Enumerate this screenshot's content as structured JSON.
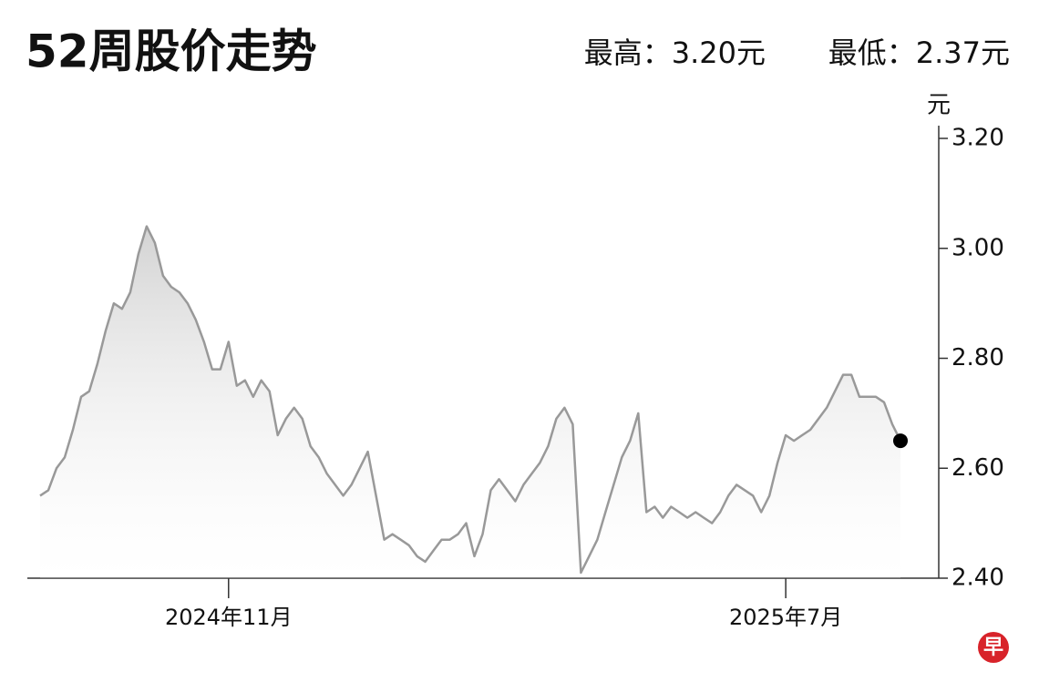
{
  "chart_data": {
    "type": "line",
    "title": "52周股价走势",
    "subtitle": [
      "最高：3.20元",
      "最低：2.37元"
    ],
    "y_axis_label": "元",
    "logo": "早",
    "categories": [
      null,
      null,
      null,
      null,
      null,
      null,
      null,
      null,
      null,
      null,
      null,
      null,
      null,
      null,
      null,
      null,
      null,
      null,
      null,
      null,
      null,
      null,
      null,
      "2024年11月",
      null,
      null,
      null,
      null,
      null,
      null,
      null,
      null,
      null,
      null,
      null,
      null,
      null,
      null,
      null,
      null,
      null,
      null,
      null,
      null,
      null,
      null,
      null,
      null,
      null,
      null,
      null,
      null,
      null,
      null,
      null,
      null,
      null,
      null,
      null,
      null,
      null,
      null,
      null,
      null,
      null,
      null,
      null,
      null,
      null,
      null,
      null,
      null,
      null,
      null,
      null,
      null,
      null,
      null,
      null,
      null,
      null,
      null,
      null,
      null,
      null,
      null,
      null,
      null,
      null,
      null,
      null,
      "2025年7月",
      null,
      null,
      null,
      null,
      null,
      null,
      null,
      null,
      null,
      null,
      null,
      null,
      null,
      null
    ],
    "series": [
      {
        "color": "#999999",
        "end_marker_color": "#000000",
        "values": [
          2.55,
          2.56,
          2.6,
          2.62,
          2.67,
          2.73,
          2.74,
          2.79,
          2.85,
          2.9,
          2.89,
          2.92,
          2.99,
          3.04,
          3.01,
          2.95,
          2.93,
          2.92,
          2.9,
          2.87,
          2.83,
          2.78,
          2.78,
          2.83,
          2.75,
          2.76,
          2.73,
          2.76,
          2.74,
          2.66,
          2.69,
          2.71,
          2.69,
          2.64,
          2.62,
          2.59,
          2.57,
          2.55,
          2.57,
          2.6,
          2.63,
          2.55,
          2.47,
          2.48,
          2.47,
          2.46,
          2.44,
          2.43,
          2.45,
          2.47,
          2.47,
          2.48,
          2.5,
          2.44,
          2.48,
          2.56,
          2.58,
          2.56,
          2.54,
          2.57,
          2.59,
          2.61,
          2.64,
          2.69,
          2.71,
          2.68,
          2.41,
          2.44,
          2.47,
          2.52,
          2.57,
          2.62,
          2.65,
          2.7,
          2.52,
          2.53,
          2.51,
          2.53,
          2.52,
          2.51,
          2.52,
          2.51,
          2.5,
          2.52,
          2.55,
          2.57,
          2.56,
          2.55,
          2.52,
          2.55,
          2.61,
          2.66,
          2.65,
          2.66,
          2.67,
          2.69,
          2.71,
          2.74,
          2.77,
          2.77,
          2.73,
          2.73,
          2.73,
          2.72,
          2.68,
          2.65
        ]
      }
    ],
    "ylim": [
      2.4,
      3.2
    ],
    "yticks": [
      {
        "value": 3.2,
        "label": "3.20"
      },
      {
        "value": 3,
        "label": "3.00"
      },
      {
        "value": 2.8,
        "label": "2.80"
      },
      {
        "value": 2.6,
        "label": "2.60"
      },
      {
        "value": 2.4,
        "label": "2.40"
      }
    ],
    "grid": false
  }
}
